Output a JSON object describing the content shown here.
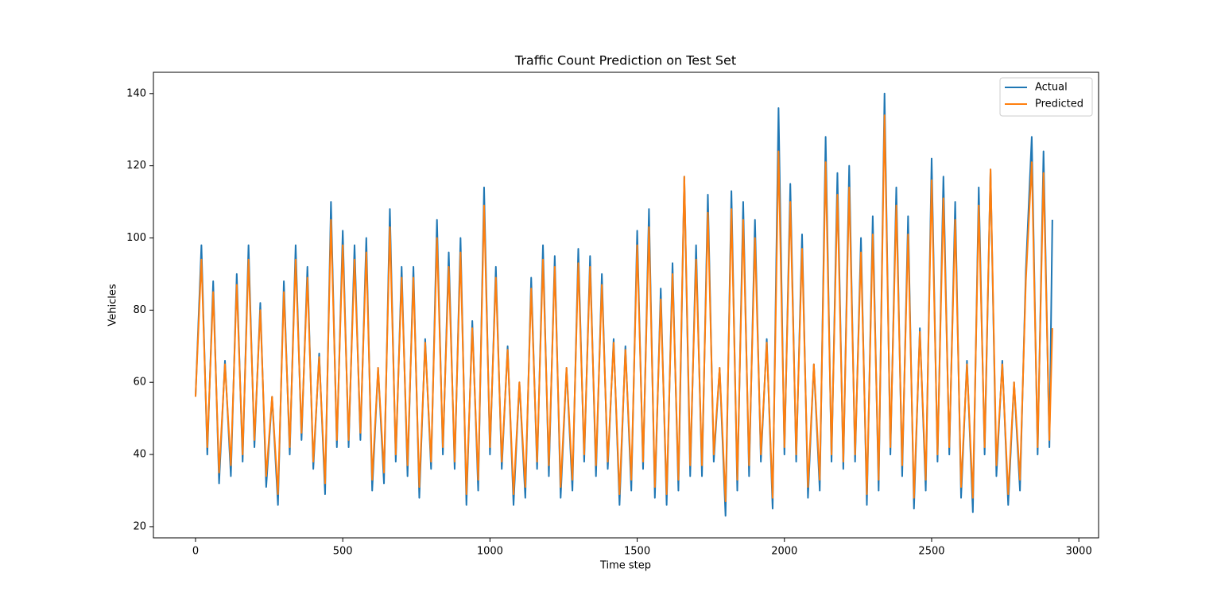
{
  "chart_data": {
    "type": "line",
    "title": "Traffic Count Prediction on Test Set",
    "xlabel": "Time step",
    "ylabel": "Vehicles",
    "x": [
      0,
      20,
      40,
      60,
      80,
      100,
      120,
      140,
      160,
      180,
      200,
      220,
      240,
      260,
      280,
      300,
      320,
      340,
      360,
      380,
      400,
      420,
      440,
      460,
      480,
      500,
      520,
      540,
      560,
      580,
      600,
      620,
      640,
      660,
      680,
      700,
      720,
      740,
      760,
      780,
      800,
      820,
      840,
      860,
      880,
      900,
      920,
      940,
      960,
      980,
      1000,
      1020,
      1040,
      1060,
      1080,
      1100,
      1120,
      1140,
      1160,
      1180,
      1200,
      1220,
      1240,
      1260,
      1280,
      1300,
      1320,
      1340,
      1360,
      1380,
      1400,
      1420,
      1440,
      1460,
      1480,
      1500,
      1520,
      1540,
      1560,
      1580,
      1600,
      1620,
      1640,
      1660,
      1680,
      1700,
      1720,
      1740,
      1760,
      1780,
      1800,
      1820,
      1840,
      1860,
      1880,
      1900,
      1920,
      1940,
      1960,
      1980,
      2000,
      2020,
      2040,
      2060,
      2080,
      2100,
      2120,
      2140,
      2160,
      2180,
      2200,
      2220,
      2240,
      2260,
      2280,
      2300,
      2320,
      2340,
      2360,
      2380,
      2400,
      2420,
      2440,
      2460,
      2480,
      2500,
      2520,
      2540,
      2560,
      2580,
      2600,
      2620,
      2640,
      2660,
      2680,
      2700,
      2720,
      2740,
      2760,
      2780,
      2800,
      2820,
      2840,
      2860,
      2880,
      2900,
      2910
    ],
    "series": [
      {
        "name": "Actual",
        "color": "#1f77b4",
        "values": [
          56,
          98,
          40,
          88,
          32,
          66,
          34,
          90,
          38,
          98,
          42,
          82,
          31,
          56,
          26,
          88,
          40,
          98,
          44,
          92,
          36,
          68,
          29,
          110,
          42,
          102,
          42,
          98,
          44,
          100,
          30,
          64,
          32,
          108,
          38,
          92,
          34,
          92,
          28,
          72,
          36,
          105,
          40,
          96,
          36,
          100,
          26,
          77,
          30,
          114,
          40,
          92,
          36,
          70,
          26,
          60,
          28,
          89,
          36,
          98,
          34,
          95,
          28,
          64,
          30,
          97,
          38,
          95,
          34,
          90,
          36,
          72,
          26,
          70,
          30,
          102,
          36,
          108,
          28,
          86,
          26,
          93,
          30,
          117,
          34,
          98,
          34,
          112,
          38,
          64,
          23,
          113,
          30,
          110,
          34,
          105,
          38,
          72,
          25,
          136,
          40,
          115,
          38,
          101,
          28,
          65,
          30,
          128,
          38,
          118,
          36,
          120,
          38,
          100,
          26,
          106,
          30,
          140,
          40,
          114,
          34,
          106,
          25,
          75,
          30,
          122,
          38,
          117,
          40,
          110,
          28,
          66,
          24,
          114,
          40,
          119,
          34,
          66,
          26,
          60,
          30,
          91,
          128,
          40,
          124,
          42,
          105
        ]
      },
      {
        "name": "Predicted",
        "color": "#ff7f0e",
        "values": [
          56,
          94,
          42,
          85,
          35,
          65,
          37,
          87,
          40,
          94,
          44,
          80,
          34,
          56,
          29,
          85,
          42,
          94,
          46,
          89,
          38,
          67,
          32,
          105,
          44,
          98,
          44,
          94,
          46,
          96,
          33,
          64,
          35,
          103,
          40,
          89,
          37,
          89,
          31,
          71,
          38,
          100,
          42,
          92,
          38,
          96,
          29,
          75,
          33,
          109,
          42,
          89,
          38,
          69,
          29,
          60,
          31,
          86,
          38,
          94,
          37,
          92,
          31,
          64,
          33,
          93,
          40,
          92,
          37,
          87,
          38,
          71,
          29,
          69,
          33,
          98,
          38,
          103,
          31,
          83,
          29,
          90,
          33,
          117,
          37,
          94,
          37,
          107,
          40,
          64,
          27,
          108,
          33,
          105,
          37,
          100,
          40,
          71,
          28,
          124,
          42,
          110,
          40,
          97,
          31,
          65,
          33,
          121,
          40,
          112,
          38,
          114,
          40,
          96,
          29,
          101,
          33,
          134,
          42,
          109,
          37,
          101,
          28,
          74,
          33,
          116,
          40,
          111,
          42,
          105,
          31,
          65,
          28,
          109,
          42,
          119,
          37,
          65,
          29,
          60,
          33,
          88,
          121,
          42,
          118,
          44,
          75
        ]
      }
    ],
    "xlim": [
      -143,
      3067
    ],
    "ylim": [
      16.9,
      145.9
    ],
    "xticks": [
      0,
      500,
      1000,
      1500,
      2000,
      2500,
      3000
    ],
    "yticks": [
      20,
      40,
      60,
      80,
      100,
      120,
      140
    ],
    "legend": "upper right",
    "grid": false
  }
}
